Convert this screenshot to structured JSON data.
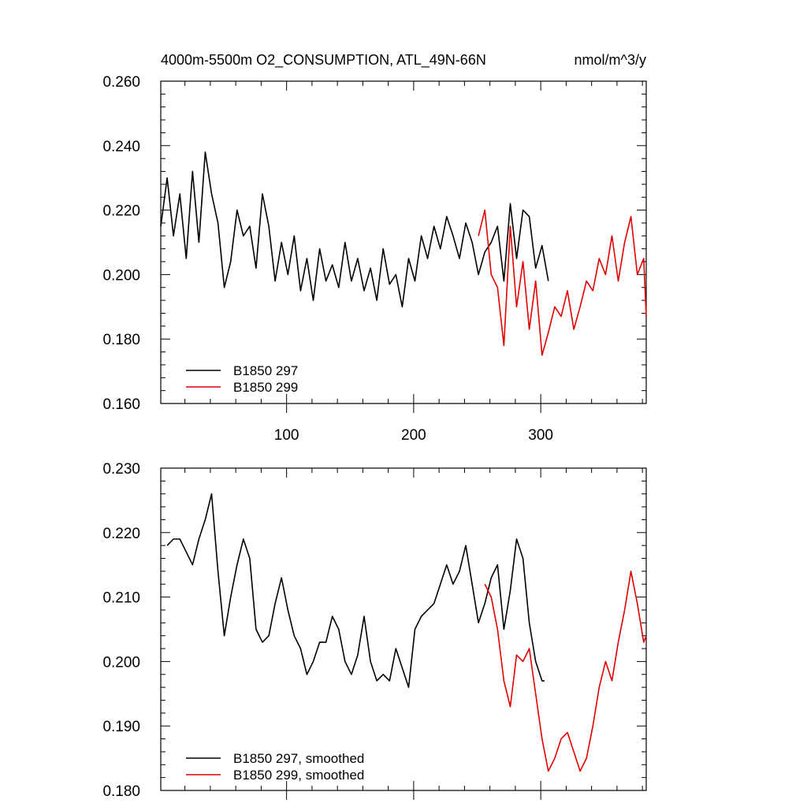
{
  "header": {
    "title": "4000m-5500m O2_CONSUMPTION, ATL_49N-66N",
    "units": "nmol/m^3/y"
  },
  "colors": {
    "series_a": "#000000",
    "series_b": "#e00000"
  },
  "chart_data": [
    {
      "type": "line",
      "title": "4000m-5500m O2_CONSUMPTION, ATL_49N-66N",
      "units": "nmol/m^3/y",
      "xlabel": "",
      "ylabel": "",
      "xlim": [
        1,
        383
      ],
      "ylim": [
        0.16,
        0.26
      ],
      "xticks": [
        100,
        200,
        300
      ],
      "xtick_labels": [
        "100",
        "200",
        "300"
      ],
      "yticks": [
        0.16,
        0.18,
        0.2,
        0.22,
        0.24,
        0.26
      ],
      "ytick_labels": [
        "0.160",
        "0.180",
        "0.200",
        "0.220",
        "0.240",
        "0.260"
      ],
      "legend_position": "bottom-left",
      "series": [
        {
          "name": "B1850 297",
          "color": "#000000",
          "x": [
            1,
            6,
            11,
            16,
            21,
            26,
            31,
            36,
            41,
            46,
            51,
            56,
            61,
            66,
            71,
            76,
            81,
            86,
            91,
            96,
            101,
            106,
            111,
            116,
            121,
            126,
            131,
            136,
            141,
            146,
            151,
            156,
            161,
            166,
            171,
            176,
            181,
            186,
            191,
            196,
            201,
            206,
            211,
            216,
            221,
            226,
            231,
            236,
            241,
            246,
            251,
            256,
            261,
            266,
            271,
            276,
            281,
            286,
            291,
            296,
            301,
            306
          ],
          "values": [
            0.215,
            0.23,
            0.212,
            0.225,
            0.205,
            0.232,
            0.21,
            0.238,
            0.225,
            0.216,
            0.196,
            0.204,
            0.22,
            0.212,
            0.215,
            0.202,
            0.225,
            0.215,
            0.198,
            0.21,
            0.2,
            0.212,
            0.195,
            0.205,
            0.192,
            0.208,
            0.198,
            0.203,
            0.196,
            0.21,
            0.198,
            0.205,
            0.195,
            0.202,
            0.192,
            0.208,
            0.197,
            0.2,
            0.19,
            0.205,
            0.198,
            0.212,
            0.205,
            0.215,
            0.208,
            0.218,
            0.212,
            0.205,
            0.216,
            0.21,
            0.2,
            0.207,
            0.21,
            0.215,
            0.198,
            0.222,
            0.205,
            0.22,
            0.218,
            0.202,
            0.209,
            0.198
          ]
        },
        {
          "name": "B1850 299",
          "color": "#e00000",
          "x": [
            251,
            256,
            261,
            266,
            271,
            276,
            281,
            286,
            291,
            296,
            301,
            306,
            311,
            316,
            321,
            326,
            331,
            336,
            341,
            346,
            351,
            356,
            361,
            366,
            371,
            376,
            381,
            383
          ],
          "values": [
            0.212,
            0.22,
            0.2,
            0.196,
            0.178,
            0.215,
            0.19,
            0.204,
            0.183,
            0.198,
            0.175,
            0.182,
            0.19,
            0.187,
            0.195,
            0.183,
            0.19,
            0.198,
            0.195,
            0.205,
            0.2,
            0.212,
            0.198,
            0.21,
            0.218,
            0.2,
            0.205,
            0.187
          ]
        }
      ]
    },
    {
      "type": "line",
      "xlabel": "",
      "ylabel": "",
      "xlim": [
        1,
        383
      ],
      "ylim": [
        0.18,
        0.23
      ],
      "xticks": [
        100,
        200,
        300
      ],
      "yticks": [
        0.18,
        0.19,
        0.2,
        0.21,
        0.22,
        0.23
      ],
      "ytick_labels": [
        "0.180",
        "0.190",
        "0.200",
        "0.210",
        "0.220",
        "0.230"
      ],
      "legend_position": "bottom-left",
      "series": [
        {
          "name": "B1850 297, smoothed",
          "color": "#000000",
          "x": [
            6,
            11,
            16,
            21,
            26,
            31,
            36,
            41,
            46,
            51,
            56,
            61,
            66,
            71,
            76,
            81,
            86,
            91,
            96,
            101,
            106,
            111,
            116,
            121,
            126,
            131,
            136,
            141,
            146,
            151,
            156,
            161,
            166,
            171,
            176,
            181,
            186,
            191,
            196,
            201,
            206,
            211,
            216,
            221,
            226,
            231,
            236,
            241,
            246,
            251,
            256,
            261,
            266,
            271,
            276,
            281,
            286,
            291,
            296,
            301,
            303
          ],
          "values": [
            0.218,
            0.219,
            0.219,
            0.217,
            0.215,
            0.219,
            0.222,
            0.226,
            0.214,
            0.204,
            0.21,
            0.215,
            0.219,
            0.216,
            0.205,
            0.203,
            0.204,
            0.209,
            0.213,
            0.208,
            0.204,
            0.202,
            0.198,
            0.2,
            0.203,
            0.203,
            0.207,
            0.205,
            0.2,
            0.198,
            0.201,
            0.207,
            0.2,
            0.197,
            0.198,
            0.197,
            0.202,
            0.199,
            0.196,
            0.205,
            0.207,
            0.208,
            0.209,
            0.212,
            0.215,
            0.212,
            0.214,
            0.218,
            0.212,
            0.206,
            0.209,
            0.213,
            0.215,
            0.205,
            0.211,
            0.219,
            0.216,
            0.206,
            0.2,
            0.197,
            0.197
          ]
        },
        {
          "name": "B1850 299, smoothed",
          "color": "#e00000",
          "x": [
            256,
            261,
            266,
            271,
            276,
            281,
            286,
            291,
            296,
            301,
            306,
            311,
            316,
            321,
            326,
            331,
            336,
            341,
            346,
            351,
            356,
            361,
            366,
            371,
            376,
            381,
            383
          ],
          "values": [
            0.212,
            0.21,
            0.205,
            0.197,
            0.193,
            0.201,
            0.2,
            0.202,
            0.195,
            0.188,
            0.183,
            0.185,
            0.188,
            0.189,
            0.186,
            0.183,
            0.185,
            0.19,
            0.196,
            0.2,
            0.197,
            0.203,
            0.208,
            0.214,
            0.209,
            0.203,
            0.204
          ]
        }
      ]
    }
  ]
}
